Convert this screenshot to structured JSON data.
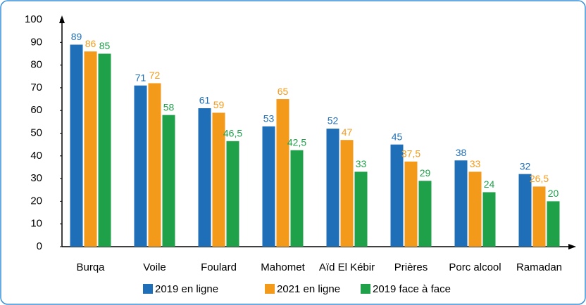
{
  "chart_data": {
    "type": "bar",
    "categories": [
      "Burqa",
      "Voile",
      "Foulard",
      "Mahomet",
      "Aïd El Kébir",
      "Prières",
      "Porc alcool",
      "Ramadan"
    ],
    "series": [
      {
        "name": "2019 en ligne",
        "color": "#1f6fb8",
        "values": [
          89,
          71,
          61,
          53,
          52,
          45,
          38,
          32
        ],
        "value_labels": [
          "89",
          "71",
          "61",
          "53",
          "52",
          "45",
          "38",
          "32"
        ]
      },
      {
        "name": "2021 en ligne",
        "color": "#f39a1b",
        "values": [
          86,
          72,
          59,
          65,
          47,
          37.5,
          33,
          26.5
        ],
        "value_labels": [
          "86",
          "72",
          "59",
          "65",
          "47",
          "37,5",
          "33",
          "26,5"
        ]
      },
      {
        "name": "2019 face à face",
        "color": "#1fa14a",
        "values": [
          85,
          58,
          46.5,
          42.5,
          33,
          29,
          24,
          20
        ],
        "value_labels": [
          "85",
          "58",
          "46,5",
          "42,5",
          "33",
          "29",
          "24",
          "20"
        ]
      }
    ],
    "ylim": [
      0,
      100
    ],
    "yticks": [
      0,
      10,
      20,
      30,
      40,
      50,
      60,
      70,
      80,
      90,
      100
    ],
    "grid": false,
    "legend": "bottom"
  }
}
